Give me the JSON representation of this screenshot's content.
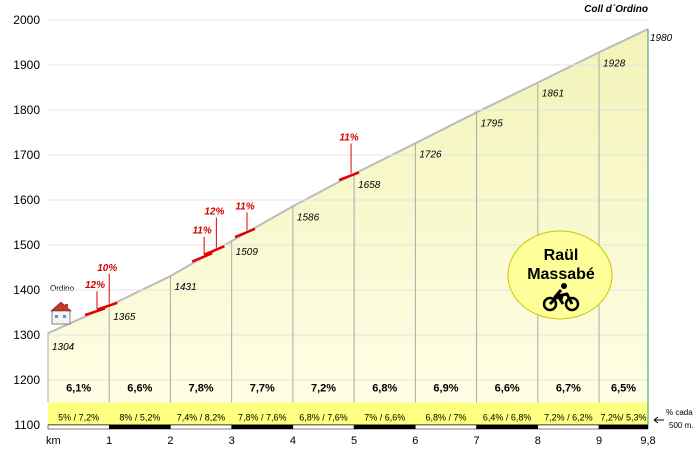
{
  "chart_data": {
    "type": "area",
    "title": "Coll d´Ordino",
    "start_label": "Ordino",
    "xlabel": "km",
    "x_ticks": [
      "1",
      "2",
      "3",
      "4",
      "5",
      "6",
      "7",
      "8",
      "9",
      "9,8"
    ],
    "x_tick_values": [
      1,
      2,
      3,
      4,
      5,
      6,
      7,
      8,
      9,
      9.8
    ],
    "ylim": [
      1100,
      2000
    ],
    "y_ticks": [
      1100,
      1200,
      1300,
      1400,
      1500,
      1600,
      1700,
      1800,
      1900,
      2000
    ],
    "xlim": [
      0,
      9.8
    ],
    "profile": [
      [
        0,
        1304
      ],
      [
        1,
        1365
      ],
      [
        2,
        1431
      ],
      [
        3,
        1509
      ],
      [
        4,
        1586
      ],
      [
        5,
        1658
      ],
      [
        6,
        1726
      ],
      [
        7,
        1795
      ],
      [
        8,
        1861
      ],
      [
        9,
        1928
      ],
      [
        9.8,
        1980
      ]
    ],
    "elevation_labels": [
      "1304",
      "1365",
      "1431",
      "1509",
      "1586",
      "1658",
      "1726",
      "1795",
      "1861",
      "1928",
      "1980"
    ],
    "segment_gradients": [
      "6,1%",
      "6,6%",
      "7,8%",
      "7,7%",
      "7,2%",
      "6,8%",
      "6,9%",
      "6,6%",
      "6,7%",
      "6,5%"
    ],
    "half_km_gradients": [
      "5%  /  7,2%",
      "8%  /  5,2%",
      "7,4% / 8,2%",
      "7,8% / 7,6%",
      "6,8% / 7,6%",
      "7%  /  6,6%",
      "6,8%  /  7%",
      "6,4% / 6,8%",
      "7,2% / 6,2%",
      "7,2%/ 5,3%"
    ],
    "half_km_note": [
      "% cada",
      "500 m."
    ],
    "steep_sections": [
      {
        "label": "12%",
        "x": 0.8
      },
      {
        "label": "10%",
        "x": 1.0
      },
      {
        "label": "11%",
        "x": 2.55
      },
      {
        "label": "12%",
        "x": 2.75
      },
      {
        "label": "11%",
        "x": 3.25
      },
      {
        "label": "11%",
        "x": 4.95
      }
    ],
    "author": [
      "Raül",
      "Massabé"
    ],
    "colors": {
      "fill_top": "#f3f3b8",
      "fill_bottom": "#ffffe8",
      "band": "#ffff80",
      "grid": "#aaaaaa",
      "steep": "#e00000",
      "badge": "#ffff99"
    }
  }
}
